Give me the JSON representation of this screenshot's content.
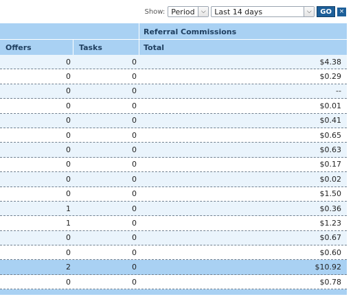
{
  "toolbar": {
    "show_label": "Show:",
    "period_value": "Period",
    "range_value": "Last 14 days",
    "go_label": "GO",
    "close_label": "×"
  },
  "table": {
    "group_header": "Referral Commissions",
    "columns": [
      "Offers",
      "Tasks",
      "Total"
    ],
    "rows": [
      {
        "offers": "0",
        "tasks": "0",
        "total": "$4.38"
      },
      {
        "offers": "0",
        "tasks": "0",
        "total": "$0.29"
      },
      {
        "offers": "0",
        "tasks": "0",
        "total": "--"
      },
      {
        "offers": "0",
        "tasks": "0",
        "total": "$0.01"
      },
      {
        "offers": "0",
        "tasks": "0",
        "total": "$0.41"
      },
      {
        "offers": "0",
        "tasks": "0",
        "total": "$0.65"
      },
      {
        "offers": "0",
        "tasks": "0",
        "total": "$0.63"
      },
      {
        "offers": "0",
        "tasks": "0",
        "total": "$0.17"
      },
      {
        "offers": "0",
        "tasks": "0",
        "total": "$0.02"
      },
      {
        "offers": "0",
        "tasks": "0",
        "total": "$1.50"
      },
      {
        "offers": "1",
        "tasks": "0",
        "total": "$0.36"
      },
      {
        "offers": "1",
        "tasks": "0",
        "total": "$1.23"
      },
      {
        "offers": "0",
        "tasks": "0",
        "total": "$0.67"
      },
      {
        "offers": "0",
        "tasks": "0",
        "total": "$0.60"
      }
    ],
    "summary_rows": [
      {
        "offers": "2",
        "tasks": "0",
        "total": "$10.92"
      },
      {
        "offers": "0",
        "tasks": "0",
        "total": "$0.78"
      }
    ]
  }
}
